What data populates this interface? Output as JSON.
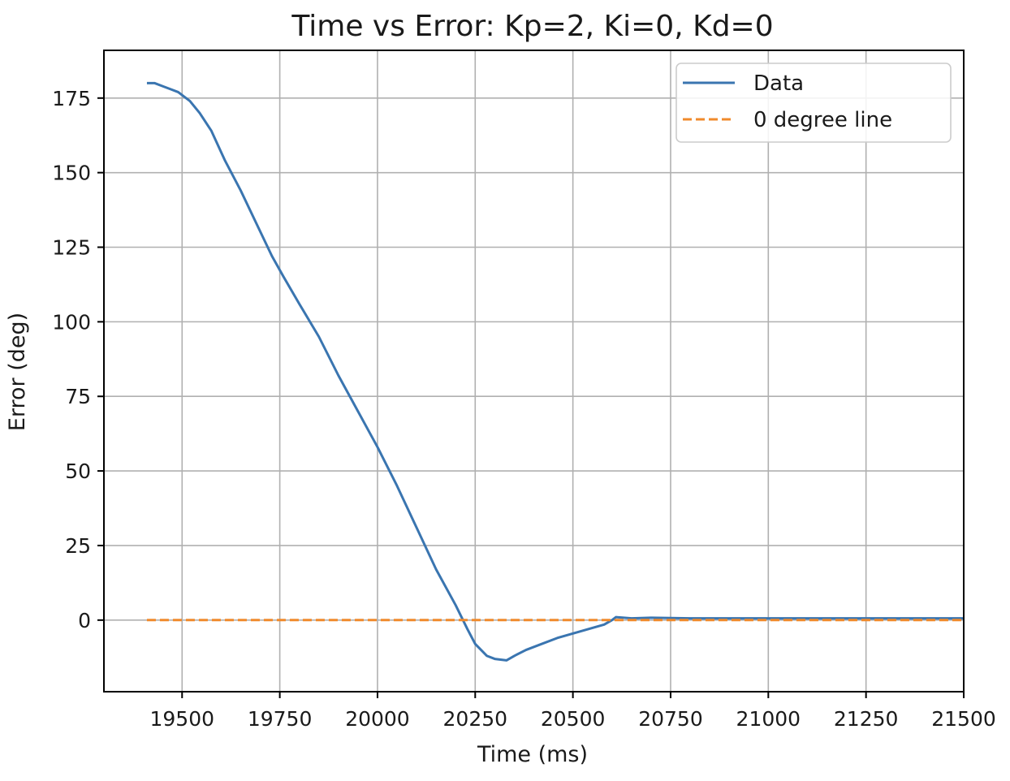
{
  "chart_data": {
    "type": "line",
    "title": "Time vs Error: Kp=2, Ki=0, Kd=0",
    "xlabel": "Time (ms)",
    "ylabel": "Error (deg)",
    "xlim": [
      19300,
      21500
    ],
    "ylim": [
      -24,
      191
    ],
    "xticks": [
      19500,
      19750,
      20000,
      20250,
      20500,
      20750,
      21000,
      21250,
      21500
    ],
    "yticks": [
      0,
      25,
      50,
      75,
      100,
      125,
      150,
      175
    ],
    "grid": true,
    "legend_position": "top-right",
    "legend": [
      {
        "label": "Data",
        "style": "solid",
        "color": "#3a75b0"
      },
      {
        "label": "0 degree line",
        "style": "dashed",
        "color": "#f08a2c"
      }
    ],
    "series": [
      {
        "name": "Data",
        "color": "#3a75b0",
        "style": "solid",
        "x": [
          19410,
          19430,
          19450,
          19470,
          19490,
          19520,
          19545,
          19575,
          19610,
          19650,
          19690,
          19730,
          19760,
          19800,
          19850,
          19900,
          19950,
          20000,
          20050,
          20100,
          20150,
          20200,
          20230,
          20250,
          20280,
          20300,
          20330,
          20350,
          20380,
          20420,
          20460,
          20500,
          20540,
          20580,
          20600,
          20610,
          20650,
          20700,
          20800,
          21000,
          21250,
          21500
        ],
        "y": [
          180,
          180,
          179,
          178,
          177,
          174,
          170,
          164,
          154,
          144,
          133,
          122,
          115,
          106,
          95,
          82,
          70,
          58,
          45,
          31,
          17,
          5,
          -3,
          -8,
          -12,
          -13,
          -13.5,
          -12,
          -10,
          -8,
          -6,
          -4.5,
          -3,
          -1.5,
          0,
          1,
          0.6,
          0.8,
          0.6,
          0.6,
          0.6,
          0.6
        ]
      },
      {
        "name": "0 degree line",
        "color": "#f08a2c",
        "style": "dashed",
        "x": [
          19410,
          21500
        ],
        "y": [
          0,
          0
        ]
      }
    ]
  }
}
